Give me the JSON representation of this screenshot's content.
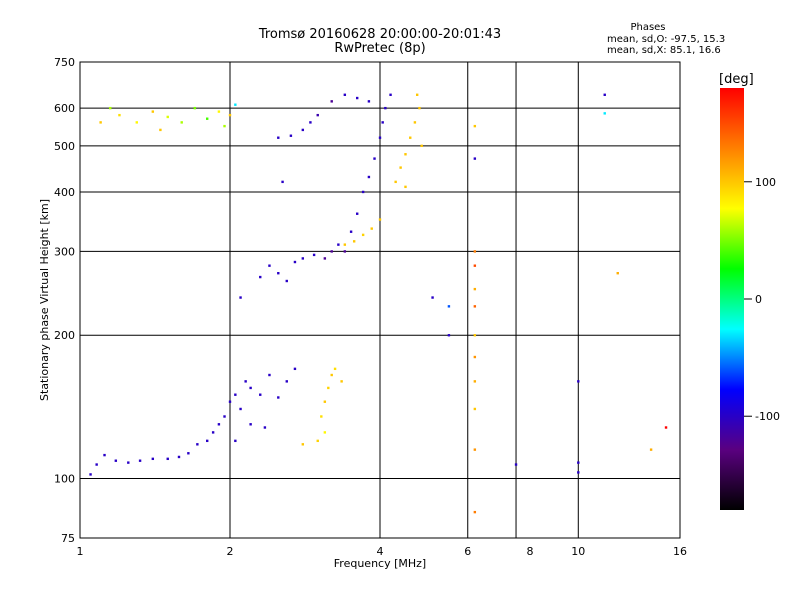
{
  "header": {
    "title_line1": "Tromsø 20160628 20:00:00-20:01:43",
    "title_line2": "RwPretec (8p)"
  },
  "phase_stats": {
    "heading": "Phases",
    "line_o": "mean, sd,O: -97.5, 15.3",
    "line_x": "mean, sd,X:  85.1, 16.6"
  },
  "colorbar": {
    "label": "[deg]",
    "ticks": [
      {
        "value": 100,
        "label": "100"
      },
      {
        "value": 0,
        "label": "0"
      },
      {
        "value": -100,
        "label": "-100"
      }
    ],
    "range": [
      -180,
      180
    ],
    "colors": [
      "#000000",
      "#5a0080",
      "#0000ff",
      "#00ffff",
      "#00ff00",
      "#ffff00",
      "#ff8000",
      "#ff0000"
    ]
  },
  "chart_data": {
    "type": "scatter",
    "xlabel": "Frequency [MHz]",
    "ylabel": "Stationary phase Virtual Height [km]",
    "xscale": "log",
    "yscale": "log",
    "xlim": [
      1,
      16
    ],
    "ylim": [
      75,
      750
    ],
    "xticks": [
      {
        "value": 1,
        "label": "1"
      },
      {
        "value": 2,
        "label": "2"
      },
      {
        "value": 4,
        "label": "4"
      },
      {
        "value": 6,
        "label": "6"
      },
      {
        "value": 8,
        "label": "8"
      },
      {
        "value": 10,
        "label": "10"
      },
      {
        "value": 16,
        "label": "16"
      }
    ],
    "xgrid": [
      2,
      4,
      6,
      7.5,
      10
    ],
    "yticks": [
      {
        "value": 75,
        "label": "75"
      },
      {
        "value": 100,
        "label": "100"
      },
      {
        "value": 200,
        "label": "200"
      },
      {
        "value": 300,
        "label": "300"
      },
      {
        "value": 400,
        "label": "400"
      },
      {
        "value": 500,
        "label": "500"
      },
      {
        "value": 600,
        "label": "600"
      },
      {
        "value": 750,
        "label": "750"
      }
    ],
    "ygrid": [
      100,
      200,
      300,
      400,
      500,
      600
    ],
    "grid": true,
    "points": [
      [
        1.05,
        102,
        -100
      ],
      [
        1.08,
        107,
        -100
      ],
      [
        1.12,
        112,
        -100
      ],
      [
        1.18,
        109,
        -100
      ],
      [
        1.25,
        108,
        -100
      ],
      [
        1.32,
        109,
        -100
      ],
      [
        1.4,
        110,
        -100
      ],
      [
        1.5,
        110,
        -100
      ],
      [
        1.58,
        111,
        -100
      ],
      [
        1.65,
        113,
        -100
      ],
      [
        1.72,
        118,
        -100
      ],
      [
        1.8,
        120,
        -100
      ],
      [
        1.85,
        125,
        -100
      ],
      [
        1.9,
        130,
        -100
      ],
      [
        1.95,
        135,
        -100
      ],
      [
        2.0,
        145,
        -100
      ],
      [
        2.05,
        150,
        -100
      ],
      [
        2.1,
        140,
        -100
      ],
      [
        2.15,
        160,
        -100
      ],
      [
        2.2,
        155,
        -100
      ],
      [
        2.3,
        150,
        -100
      ],
      [
        2.4,
        165,
        -100
      ],
      [
        2.5,
        148,
        -100
      ],
      [
        2.6,
        160,
        -100
      ],
      [
        2.7,
        170,
        -100
      ],
      [
        2.05,
        120,
        -100
      ],
      [
        2.2,
        130,
        -100
      ],
      [
        2.35,
        128,
        -100
      ],
      [
        2.8,
        118,
        100
      ],
      [
        3.0,
        120,
        95
      ],
      [
        3.05,
        135,
        90
      ],
      [
        3.1,
        145,
        100
      ],
      [
        3.15,
        155,
        95
      ],
      [
        3.2,
        165,
        100
      ],
      [
        3.25,
        170,
        90
      ],
      [
        3.35,
        160,
        100
      ],
      [
        3.1,
        125,
        80
      ],
      [
        2.1,
        240,
        -100
      ],
      [
        2.3,
        265,
        -100
      ],
      [
        2.4,
        280,
        -100
      ],
      [
        2.5,
        270,
        -100
      ],
      [
        2.6,
        260,
        -100
      ],
      [
        2.7,
        285,
        -100
      ],
      [
        2.8,
        290,
        -100
      ],
      [
        2.95,
        295,
        -100
      ],
      [
        3.1,
        290,
        -120
      ],
      [
        3.2,
        300,
        -120
      ],
      [
        3.3,
        310,
        -100
      ],
      [
        3.4,
        300,
        -120
      ],
      [
        3.5,
        330,
        -100
      ],
      [
        3.6,
        360,
        -100
      ],
      [
        3.7,
        400,
        -100
      ],
      [
        3.8,
        430,
        -100
      ],
      [
        3.9,
        470,
        -100
      ],
      [
        4.0,
        520,
        -100
      ],
      [
        4.05,
        560,
        -100
      ],
      [
        4.1,
        600,
        -100
      ],
      [
        3.6,
        630,
        -100
      ],
      [
        3.8,
        620,
        -100
      ],
      [
        4.2,
        640,
        -100
      ],
      [
        3.4,
        640,
        -100
      ],
      [
        3.2,
        620,
        -120
      ],
      [
        3.4,
        310,
        100
      ],
      [
        3.55,
        315,
        100
      ],
      [
        3.7,
        325,
        95
      ],
      [
        3.85,
        335,
        100
      ],
      [
        4.0,
        350,
        100
      ],
      [
        4.3,
        420,
        100
      ],
      [
        4.4,
        450,
        100
      ],
      [
        4.5,
        480,
        100
      ],
      [
        4.6,
        520,
        100
      ],
      [
        4.7,
        560,
        100
      ],
      [
        4.8,
        600,
        100
      ],
      [
        4.75,
        640,
        100
      ],
      [
        4.85,
        500,
        100
      ],
      [
        4.5,
        410,
        100
      ],
      [
        2.5,
        520,
        -100
      ],
      [
        2.65,
        525,
        -100
      ],
      [
        2.8,
        540,
        -100
      ],
      [
        2.9,
        560,
        -100
      ],
      [
        3.0,
        580,
        -110
      ],
      [
        2.55,
        420,
        -100
      ],
      [
        1.1,
        560,
        100
      ],
      [
        1.2,
        580,
        90
      ],
      [
        1.3,
        560,
        80
      ],
      [
        1.4,
        590,
        100
      ],
      [
        1.5,
        575,
        70
      ],
      [
        1.6,
        560,
        60
      ],
      [
        1.7,
        600,
        50
      ],
      [
        1.8,
        570,
        40
      ],
      [
        1.9,
        590,
        80
      ],
      [
        2.0,
        580,
        100
      ],
      [
        2.05,
        610,
        -30
      ],
      [
        1.95,
        550,
        60
      ],
      [
        1.15,
        600,
        60
      ],
      [
        1.45,
        540,
        100
      ],
      [
        6.2,
        550,
        100
      ],
      [
        6.2,
        470,
        -100
      ],
      [
        6.2,
        300,
        130
      ],
      [
        6.2,
        280,
        150
      ],
      [
        6.2,
        250,
        110
      ],
      [
        6.2,
        230,
        140
      ],
      [
        6.2,
        200,
        100
      ],
      [
        6.2,
        180,
        120
      ],
      [
        6.2,
        160,
        110
      ],
      [
        6.2,
        140,
        100
      ],
      [
        6.2,
        115,
        120
      ],
      [
        6.2,
        85,
        130
      ],
      [
        5.5,
        230,
        -60
      ],
      [
        5.5,
        200,
        -100
      ],
      [
        5.1,
        240,
        -100
      ],
      [
        7.5,
        107,
        -100
      ],
      [
        10,
        160,
        -100
      ],
      [
        10,
        108,
        -100
      ],
      [
        10,
        103,
        -100
      ],
      [
        11.3,
        640,
        -100
      ],
      [
        11.3,
        585,
        -30
      ],
      [
        12,
        270,
        110
      ],
      [
        14,
        115,
        110
      ],
      [
        15,
        128,
        180
      ]
    ]
  }
}
